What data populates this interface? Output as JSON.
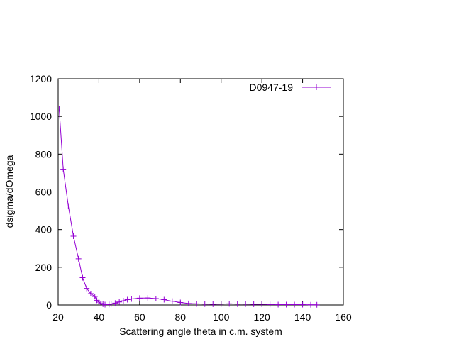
{
  "chart_data": {
    "type": "line",
    "title": "",
    "xlabel": "Scattering angle theta in c.m. system",
    "ylabel": "dsigma/dOmega",
    "xlim": [
      20,
      160
    ],
    "ylim": [
      0,
      1200
    ],
    "x_ticks": [
      20,
      40,
      60,
      80,
      100,
      120,
      140,
      160
    ],
    "y_ticks": [
      0,
      200,
      400,
      600,
      800,
      1000,
      1200
    ],
    "grid": false,
    "legend_position": "top-right",
    "series": [
      {
        "name": "D0947-19",
        "color": "#9400d3",
        "marker": "plus",
        "x": [
          20.5,
          22.5,
          25,
          27.5,
          30,
          32,
          34,
          36,
          38,
          39,
          40,
          41,
          42,
          43,
          45,
          46,
          48,
          50,
          52,
          54,
          56,
          60,
          64,
          68,
          72,
          76,
          80,
          84,
          88,
          92,
          96,
          100,
          104,
          108,
          112,
          116,
          120,
          124,
          128,
          132,
          136,
          140,
          144,
          147
        ],
        "y": [
          1040,
          720,
          525,
          365,
          245,
          145,
          88,
          60,
          45,
          25,
          15,
          8,
          4,
          2,
          3,
          5,
          10,
          16,
          22,
          28,
          32,
          36,
          37,
          34,
          28,
          20,
          13,
          8,
          6,
          5,
          4,
          5,
          6,
          5,
          5,
          4,
          4,
          3,
          2,
          2,
          2,
          2,
          1,
          1
        ]
      }
    ]
  }
}
